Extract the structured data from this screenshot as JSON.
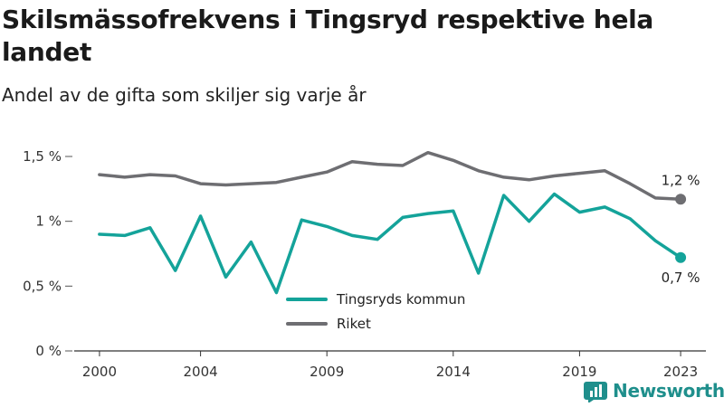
{
  "title": "Skilsmässofrekvens i Tingsryd respektive hela landet",
  "subtitle": "Andel av de gifta som skiljer sig varje år",
  "brand": {
    "name": "Newsworthy",
    "icon": "bar-chart-icon",
    "color": "#1f8f8c"
  },
  "chart_data": {
    "type": "line",
    "xlim": [
      1999,
      2024
    ],
    "ylim": [
      0,
      1.5
    ],
    "y_ticks": [
      {
        "value": 0,
        "label": "0 %"
      },
      {
        "value": 0.5,
        "label": "0,5 %"
      },
      {
        "value": 1,
        "label": "1 %"
      },
      {
        "value": 1.5,
        "label": "1,5 %"
      }
    ],
    "x_ticks": [
      {
        "value": 2000,
        "label": "2000"
      },
      {
        "value": 2004,
        "label": "2004"
      },
      {
        "value": 2009,
        "label": "2009"
      },
      {
        "value": 2014,
        "label": "2014"
      },
      {
        "value": 2019,
        "label": "2019"
      },
      {
        "value": 2023,
        "label": "2023"
      }
    ],
    "x": [
      2000,
      2001,
      2002,
      2003,
      2004,
      2005,
      2006,
      2007,
      2008,
      2009,
      2010,
      2011,
      2012,
      2013,
      2014,
      2015,
      2016,
      2017,
      2018,
      2019,
      2020,
      2021,
      2022,
      2023
    ],
    "series": [
      {
        "name": "Tingsryds kommun",
        "color": "#14a39a",
        "values": [
          0.9,
          0.89,
          0.95,
          0.62,
          1.04,
          0.57,
          0.84,
          0.45,
          1.01,
          0.96,
          0.89,
          0.86,
          1.03,
          1.06,
          1.08,
          0.6,
          1.2,
          1.0,
          1.21,
          1.07,
          1.11,
          1.02,
          0.85,
          0.72
        ],
        "end_label": "0,7 %"
      },
      {
        "name": "Riket",
        "color": "#6e6e72",
        "values": [
          1.36,
          1.34,
          1.36,
          1.35,
          1.29,
          1.28,
          1.29,
          1.3,
          1.34,
          1.38,
          1.46,
          1.44,
          1.43,
          1.53,
          1.47,
          1.39,
          1.34,
          1.32,
          1.35,
          1.37,
          1.39,
          1.29,
          1.18,
          1.17
        ],
        "end_label": "1,2 %"
      }
    ],
    "legend_placement": "bottom-center",
    "grid": false
  }
}
